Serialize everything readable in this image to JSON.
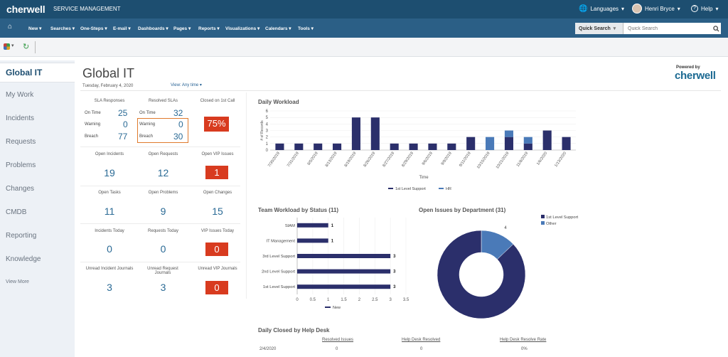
{
  "app": {
    "logo": "cherwell",
    "product": "SERVICE MANAGEMENT",
    "languages": "Languages",
    "user": "Henri Bryce",
    "help": "Help"
  },
  "nav": {
    "items": [
      "New",
      "Searches",
      "One-Steps",
      "E-mail",
      "Dashboards",
      "Pages",
      "Reports",
      "Visualizations",
      "Calendars",
      "Tools"
    ]
  },
  "quick_search": {
    "label": "Quick Search",
    "placeholder": "Quick Search"
  },
  "sidebar": {
    "items": [
      "Global IT",
      "My Work",
      "Incidents",
      "Requests",
      "Problems",
      "Changes",
      "CMDB",
      "Reporting",
      "Knowledge",
      "View More"
    ]
  },
  "header": {
    "title": "Global IT",
    "date": "Tuesday, February 4, 2020",
    "view": "View: Any time",
    "powered_by": "Powered by",
    "powered_logo": "cherwell"
  },
  "kpi": {
    "sla_responses": {
      "title": "SLA Responses",
      "on_time_label": "On Time",
      "on_time": "25",
      "warning_label": "Warning",
      "warning": "0",
      "breach_label": "Breach",
      "breach": "77"
    },
    "resolved_slas": {
      "title": "Resolved SLAs",
      "on_time_label": "On Time",
      "on_time": "32",
      "warning_label": "Warning",
      "warning": "0",
      "breach_label": "Breach",
      "breach": "30"
    },
    "closed_first_call": {
      "title": "Closed on 1st Call",
      "value": "75%"
    },
    "open_incidents": {
      "title": "Open Incidents",
      "value": "19"
    },
    "open_requests": {
      "title": "Open Requests",
      "value": "12"
    },
    "open_vip_issues": {
      "title": "Open VIP Issues",
      "value": "1"
    },
    "open_tasks": {
      "title": "Open Tasks",
      "value": "11"
    },
    "open_problems": {
      "title": "Open Problems",
      "value": "9"
    },
    "open_changes": {
      "title": "Open Changes",
      "value": "15"
    },
    "incidents_today": {
      "title": "Incidents Today",
      "value": "0"
    },
    "requests_today": {
      "title": "Requests Today",
      "value": "0"
    },
    "vip_issues_today": {
      "title": "VIP Issues Today",
      "value": "0"
    },
    "unread_incident_journals": {
      "title": "Unread Incident Journals",
      "value": "3"
    },
    "unread_request_journals": {
      "title": "Unread Request Journals",
      "value": "3"
    },
    "unread_vip_journals": {
      "title": "Unread VIP Journals",
      "value": "0"
    }
  },
  "daily_closed": {
    "title": "Daily Closed by Help Desk",
    "headers": [
      "Resolved Issues",
      "Help Desk Resolved",
      "Help Desk Resolve Rate"
    ],
    "rows": [
      {
        "date": "2/4/2020",
        "values": [
          "0",
          "0",
          "0%"
        ]
      }
    ]
  },
  "chart_data": [
    {
      "type": "bar",
      "title": "Daily Workload",
      "xlabel": "Time",
      "ylabel": "# of Records",
      "ylim": [
        0,
        6
      ],
      "legend_position": "bottom",
      "categories": [
        "7/30/2019",
        "7/31/2019",
        "8/5/2019",
        "8/13/2019",
        "8/19/2019",
        "8/26/2019",
        "8/27/2019",
        "8/29/2019",
        "9/6/2019",
        "9/9/2019",
        "9/11/2019",
        "10/15/2019",
        "10/21/2019",
        "11/8/2019",
        "1/6/2020",
        "1/13/2020"
      ],
      "series": [
        {
          "name": "1st Level Support",
          "color": "#2b2f6b",
          "values": [
            1,
            1,
            1,
            1,
            5,
            5,
            1,
            1,
            1,
            1,
            2,
            0,
            2,
            1,
            3,
            2
          ]
        },
        {
          "name": "HR",
          "color": "#4a7ab8",
          "values": [
            0,
            0,
            0,
            0,
            0,
            0,
            0,
            0,
            0,
            0,
            0,
            2,
            1,
            1,
            0,
            0
          ]
        }
      ]
    },
    {
      "type": "bar",
      "orientation": "horizontal",
      "title": "Team Workload by Status (11)",
      "categories": [
        "SIAM",
        "IT Management",
        "3rd Level Support",
        "2nd Level Support",
        "1st Level Support"
      ],
      "series": [
        {
          "name": "New",
          "color": "#2b2f6b",
          "values": [
            1,
            1,
            3,
            3,
            3
          ]
        }
      ],
      "xlim": [
        0,
        3.5
      ],
      "xticks": [
        "0",
        "0.5",
        "1",
        "1.5",
        "2",
        "2.5",
        "3",
        "3.5"
      ],
      "legend_position": "bottom"
    },
    {
      "type": "pie",
      "donut": true,
      "title": "Open Issues by Department (31)",
      "slices": [
        {
          "name": "1st Level Support",
          "value": 27,
          "color": "#2b2f6b"
        },
        {
          "name": "Other",
          "value": 4,
          "color": "#4a7ab8"
        }
      ],
      "legend_position": "top-right"
    }
  ]
}
